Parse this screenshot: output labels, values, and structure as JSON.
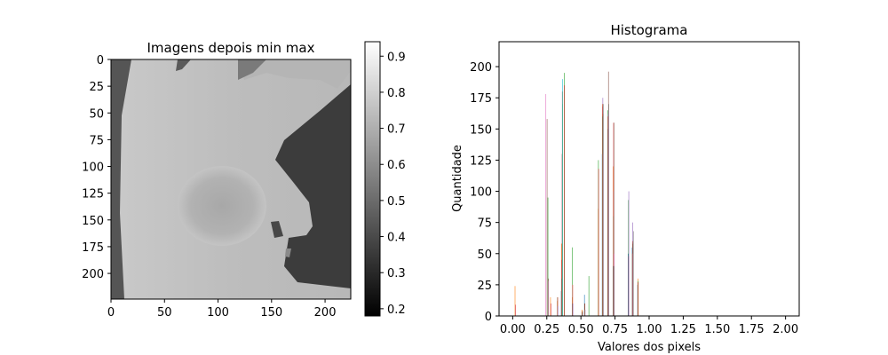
{
  "chart_data": [
    {
      "type": "heatmap",
      "title": "Imagens depois min max",
      "xlim": [
        0,
        224
      ],
      "ylim": [
        224,
        0
      ],
      "xticks": [
        0,
        50,
        100,
        150,
        200
      ],
      "yticks": [
        0,
        25,
        50,
        75,
        100,
        125,
        150,
        175,
        200
      ],
      "colormap": "gray",
      "colorbar": {
        "vmin": 0.18,
        "vmax": 0.94,
        "ticks": [
          0.2,
          0.3,
          0.4,
          0.5,
          0.6,
          0.7,
          0.8,
          0.9
        ]
      },
      "tick_labels": {
        "x": [
          "0",
          "50",
          "100",
          "150",
          "200"
        ],
        "y": [
          "0",
          "25",
          "50",
          "75",
          "100",
          "125",
          "150",
          "175",
          "200"
        ],
        "colorbar": [
          "0.2",
          "0.3",
          "0.4",
          "0.5",
          "0.6",
          "0.7",
          "0.8",
          "0.9"
        ]
      }
    },
    {
      "type": "bar",
      "title": "Histograma",
      "xlabel": "Valores dos pixels",
      "ylabel": "Quantidade",
      "xlim": [
        -0.1,
        2.1
      ],
      "ylim": [
        0,
        220
      ],
      "xticks": [
        0.0,
        0.25,
        0.5,
        0.75,
        1.0,
        1.25,
        1.5,
        1.75,
        2.0
      ],
      "yticks": [
        0,
        25,
        50,
        75,
        100,
        125,
        150,
        175,
        200
      ],
      "tick_labels": {
        "x": [
          "0.00",
          "0.25",
          "0.50",
          "0.75",
          "1.00",
          "1.25",
          "1.50",
          "1.75",
          "2.00"
        ],
        "y": [
          "0",
          "25",
          "50",
          "75",
          "100",
          "125",
          "150",
          "175",
          "200"
        ]
      },
      "series_colors": [
        "#1f77b4",
        "#ff7f0e",
        "#2ca02c",
        "#d62728",
        "#9467bd",
        "#8c564b",
        "#e377c2",
        "#7f7f7f",
        "#bcbd22",
        "#17becf"
      ],
      "bin_groups": [
        {
          "x": 0.02,
          "values": [
            0,
            24,
            0,
            9,
            0,
            0,
            0,
            0,
            0,
            0
          ]
        },
        {
          "x": 0.24,
          "values": [
            0,
            0,
            0,
            0,
            0,
            0,
            178,
            0,
            0,
            0
          ]
        },
        {
          "x": 0.25,
          "values": [
            0,
            0,
            0,
            0,
            0,
            158,
            0,
            0,
            0,
            0
          ]
        },
        {
          "x": 0.26,
          "values": [
            0,
            0,
            95,
            0,
            0,
            30,
            28,
            0,
            0,
            0
          ]
        },
        {
          "x": 0.28,
          "values": [
            0,
            15,
            0,
            10,
            0,
            0,
            0,
            0,
            0,
            0
          ]
        },
        {
          "x": 0.33,
          "values": [
            0,
            12,
            15,
            15,
            8,
            0,
            0,
            0,
            0,
            0
          ]
        },
        {
          "x": 0.36,
          "values": [
            20,
            58,
            30,
            45,
            40,
            130,
            180,
            170,
            180,
            190
          ]
        },
        {
          "x": 0.38,
          "values": [
            0,
            0,
            195,
            185,
            0,
            0,
            0,
            0,
            0,
            0
          ]
        },
        {
          "x": 0.44,
          "values": [
            10,
            15,
            55,
            25,
            10,
            0,
            0,
            0,
            0,
            0
          ]
        },
        {
          "x": 0.51,
          "values": [
            0,
            5,
            3,
            3,
            2,
            4,
            0,
            0,
            0,
            0
          ]
        },
        {
          "x": 0.53,
          "values": [
            17,
            5,
            10,
            10,
            5,
            0,
            0,
            0,
            0,
            0
          ]
        },
        {
          "x": 0.56,
          "values": [
            0,
            0,
            32,
            0,
            0,
            0,
            0,
            0,
            0,
            0
          ]
        },
        {
          "x": 0.63,
          "values": [
            0,
            86,
            125,
            118,
            0,
            0,
            0,
            0,
            0,
            0
          ]
        },
        {
          "x": 0.66,
          "values": [
            130,
            170,
            160,
            168,
            175,
            162,
            130,
            170,
            0,
            0
          ]
        },
        {
          "x": 0.7,
          "values": [
            150,
            160,
            165,
            160,
            162,
            196,
            165,
            170,
            0,
            0
          ]
        },
        {
          "x": 0.74,
          "values": [
            40,
            120,
            80,
            155,
            100,
            155,
            50,
            40,
            0,
            0
          ]
        },
        {
          "x": 0.85,
          "values": [
            50,
            0,
            93,
            48,
            100,
            0,
            0,
            0,
            0,
            0
          ]
        },
        {
          "x": 0.88,
          "values": [
            55,
            50,
            58,
            60,
            75,
            60,
            50,
            68,
            0,
            0
          ]
        },
        {
          "x": 0.92,
          "values": [
            25,
            30,
            28,
            27,
            0,
            0,
            0,
            0,
            0,
            0
          ]
        }
      ]
    }
  ]
}
